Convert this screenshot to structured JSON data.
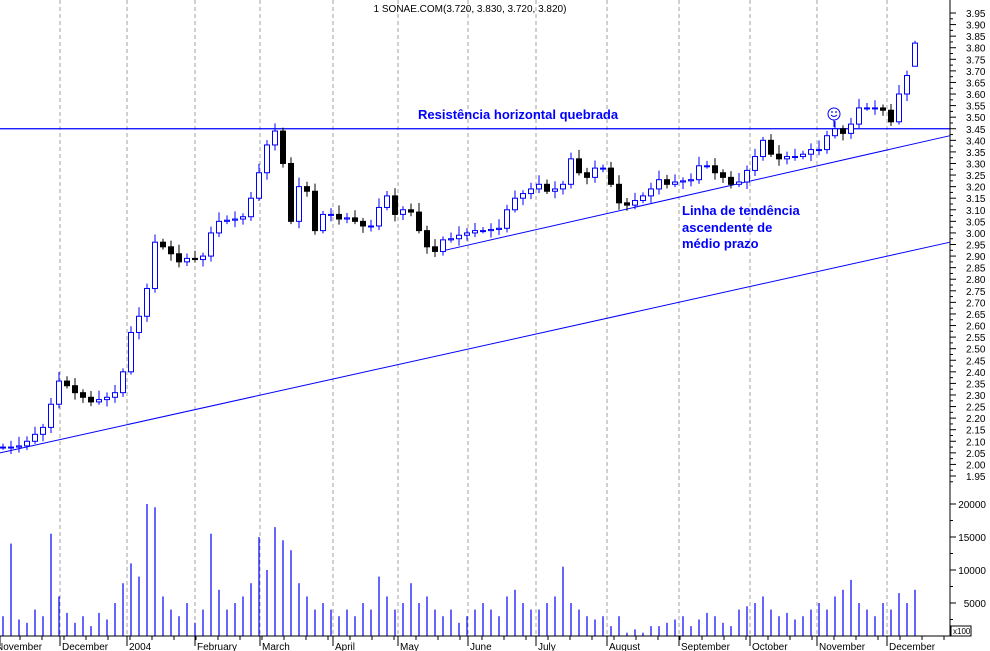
{
  "chart_data": {
    "type": "candlestick",
    "title": "1 SONAE.COM(3.720, 3.830, 3.720, 3.820)",
    "last_bar": {
      "open": 3.72,
      "high": 3.83,
      "low": 3.72,
      "close": 3.82
    },
    "colors": {
      "up": "#0000ff",
      "down": "#000000",
      "lines": "#0000ff",
      "grid": "#a0a0a0"
    },
    "price_axis": {
      "min": 1.95,
      "max": 3.95,
      "step": 0.05,
      "position": "right"
    },
    "volume_axis": {
      "ticks": [
        5000,
        10000,
        15000,
        20000
      ],
      "unit_label": "x100",
      "position": "right"
    },
    "x_tick_labels": [
      "November",
      "December",
      "2004",
      "February",
      "March",
      "April",
      "May",
      "June",
      "July",
      "August",
      "September",
      "October",
      "November",
      "December"
    ],
    "grid": "vertical dashed at month starts",
    "closes": [
      2.075,
      2.075,
      2.08,
      2.1,
      2.13,
      2.16,
      2.26,
      2.36,
      2.34,
      2.31,
      2.29,
      2.27,
      2.28,
      2.29,
      2.31,
      2.4,
      2.57,
      2.64,
      2.76,
      2.96,
      2.94,
      2.91,
      2.875,
      2.89,
      2.885,
      2.9,
      3.0,
      3.05,
      3.055,
      3.06,
      3.07,
      3.15,
      3.26,
      3.38,
      3.44,
      3.3,
      3.05,
      3.2,
      3.18,
      3.01,
      3.08,
      3.08,
      3.06,
      3.065,
      3.05,
      3.03,
      3.03,
      3.11,
      3.16,
      3.08,
      3.1,
      3.09,
      3.01,
      2.94,
      2.92,
      2.97,
      2.975,
      2.99,
      3.0,
      3.01,
      3.01,
      3.015,
      3.02,
      3.1,
      3.15,
      3.17,
      3.19,
      3.21,
      3.18,
      3.19,
      3.21,
      3.32,
      3.26,
      3.24,
      3.28,
      3.28,
      3.21,
      3.13,
      3.12,
      3.14,
      3.16,
      3.19,
      3.23,
      3.21,
      3.22,
      3.225,
      3.23,
      3.29,
      3.29,
      3.26,
      3.24,
      3.21,
      3.22,
      3.27,
      3.33,
      3.4,
      3.34,
      3.32,
      3.33,
      3.33,
      3.34,
      3.36,
      3.36,
      3.42,
      3.45,
      3.43,
      3.47,
      3.54,
      3.54,
      3.54,
      3.53,
      3.48,
      3.6,
      3.68,
      3.82
    ],
    "volumes": [
      3000,
      14000,
      2500,
      2000,
      4000,
      3000,
      15500,
      6000,
      3500,
      2000,
      3000,
      1500,
      3500,
      2500,
      5000,
      8000,
      11000,
      9000,
      20000,
      19500,
      6000,
      4000,
      3000,
      5000,
      2000,
      4000,
      15500,
      7000,
      4000,
      5000,
      6000,
      8000,
      15000,
      10000,
      16500,
      14500,
      13000,
      8000,
      6000,
      4000,
      5000,
      4000,
      3000,
      4000,
      3000,
      5000,
      4000,
      9000,
      6000,
      4000,
      5000,
      8000,
      5000,
      6000,
      4000,
      3000,
      4000,
      2000,
      3000,
      4000,
      5000,
      4000,
      3000,
      6000,
      7000,
      5000,
      4000,
      4000,
      5000,
      6000,
      10500,
      5000,
      4000,
      3000,
      2500,
      3000,
      1500,
      3000,
      500,
      1000,
      500,
      1500,
      1500,
      2000,
      2500,
      3000,
      1500,
      2500,
      3500,
      3000,
      2000,
      1500,
      4000,
      4500,
      5000,
      6000,
      4000,
      3000,
      3500,
      2500,
      3000,
      4000,
      5000,
      4000,
      6000,
      7000,
      8500,
      5000,
      4000,
      3000,
      5000,
      4000,
      6500,
      5000,
      7000
    ],
    "lines": {
      "resistance": {
        "price": 3.45
      },
      "long_term_trend": {
        "start_price": 2.05,
        "end_price": 2.96
      },
      "medium_term_trend": {
        "start_price": 2.92,
        "end_price": 3.42
      }
    },
    "annotations": {
      "resistance_label": "Resistência horizontal quebrada",
      "trend_label_line1": "Linha de tendência",
      "trend_label_line2": "ascendente de",
      "trend_label_line3": "médio prazo",
      "marker_icon": "smiley-icon"
    }
  }
}
